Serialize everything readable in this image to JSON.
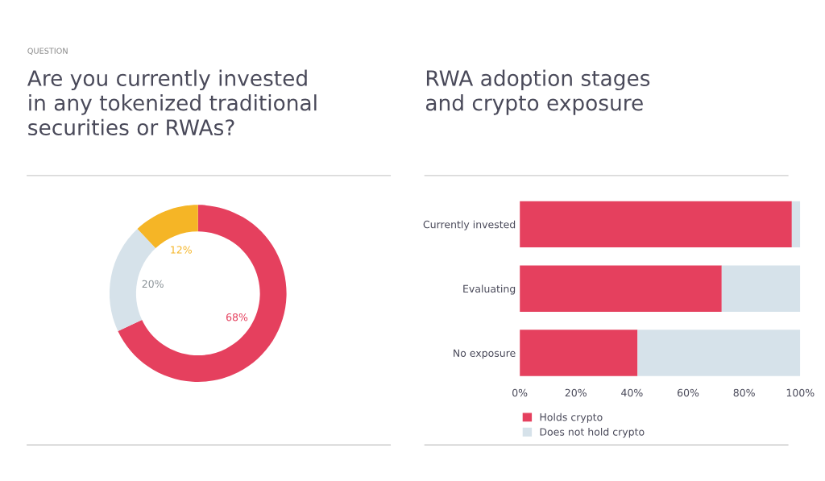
{
  "chart_data": [
    {
      "type": "donut",
      "title": "Are you currently invested\nin any tokenized traditional\nsecurities or RWAs?",
      "annotations": [
        "QUESTION"
      ],
      "categories": [
        null,
        null,
        null
      ],
      "values": [
        68,
        20,
        12
      ],
      "colors": [
        "#e5405e",
        "#d6e2ea",
        "#f5b526"
      ],
      "value_labels": [
        "68%",
        "20%",
        "12%"
      ]
    },
    {
      "type": "bar",
      "orientation": "horizontal",
      "stacked": true,
      "title": "RWA adoption stages\nand crypto exposure",
      "categories": [
        "Currently invested",
        "Evaluating",
        "No exposure"
      ],
      "series": [
        {
          "name": "Holds crypto",
          "color": "#e5405e",
          "values": [
            97,
            72,
            42
          ]
        },
        {
          "name": "Does not hold crypto",
          "color": "#d6e2ea",
          "values": [
            3,
            28,
            58
          ]
        }
      ],
      "xlim": [
        0,
        100
      ],
      "xticks": [
        {
          "value": 0,
          "label": "0%"
        },
        {
          "value": 20,
          "label": "20%"
        },
        {
          "value": 40,
          "label": "40%"
        },
        {
          "value": 60,
          "label": "60%"
        },
        {
          "value": 80,
          "label": "80%"
        },
        {
          "value": 100,
          "label": "100%"
        }
      ],
      "grid": false,
      "legend": "bottom left"
    }
  ]
}
